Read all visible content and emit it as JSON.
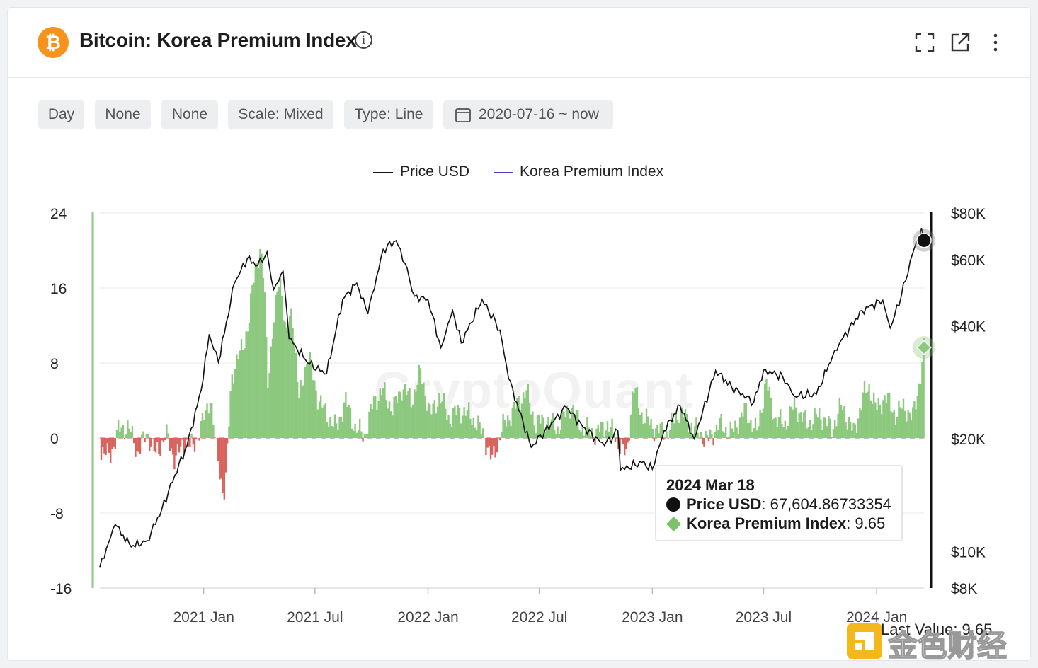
{
  "header": {
    "title": "Bitcoin: Korea Premium Index",
    "logo_glyph": "₿",
    "info_glyph": "i",
    "actions": [
      {
        "name": "fullscreen-icon"
      },
      {
        "name": "external-link-icon"
      },
      {
        "name": "more-vertical-icon"
      }
    ]
  },
  "toolbar": {
    "chips": [
      {
        "label": "Day"
      },
      {
        "label": "None"
      },
      {
        "label": "None"
      },
      {
        "label": "Scale: Mixed"
      },
      {
        "label": "Type: Line"
      }
    ],
    "date_range": "2020-07-16 ~ now"
  },
  "watermark": "CryptoQuant",
  "tooltip": {
    "date": "2024 Mar 18",
    "price_label": "Price USD",
    "price_value": "67,604.86733354",
    "kpi_label": "Korea Premium Index",
    "kpi_value": "9.65"
  },
  "last_value": "Last Value: 9.65",
  "corner_brand": "金色财经",
  "chart_data": {
    "type": "line",
    "title": "Bitcoin: Korea Premium Index",
    "legend": [
      {
        "name": "Price USD",
        "color": "#111111"
      },
      {
        "name": "Korea Premium Index",
        "color": "#4a3ccc"
      }
    ],
    "legend_position": "top-center",
    "x_ticks": [
      "2021 Jan",
      "2021 Jul",
      "2022 Jan",
      "2022 Jul",
      "2023 Jan",
      "2023 Jul",
      "2024 Jan"
    ],
    "x_range": [
      "2020-07-16",
      "2024-03-18"
    ],
    "left_axis": {
      "ticks": [
        "24",
        "16",
        "8",
        "0",
        "-8",
        "-16"
      ],
      "range": [
        -16,
        24
      ]
    },
    "right_axis": {
      "scale": "log",
      "ticks": [
        "$80K",
        "$60K",
        "$40K",
        "$20K",
        "$10K",
        "$8K"
      ],
      "range": [
        8000,
        80000
      ]
    },
    "grid": true,
    "positive_color": "#8cc97e",
    "negative_color": "#d9635c",
    "series": [
      {
        "name": "Price USD",
        "axis": "right",
        "points": [
          [
            "2020-07-16",
            9100
          ],
          [
            "2020-08-10",
            11800
          ],
          [
            "2020-09-05",
            10300
          ],
          [
            "2020-10-01",
            10700
          ],
          [
            "2020-10-25",
            13000
          ],
          [
            "2020-11-15",
            16000
          ],
          [
            "2020-12-05",
            19200
          ],
          [
            "2020-12-28",
            27000
          ],
          [
            "2021-01-10",
            38000
          ],
          [
            "2021-01-25",
            32000
          ],
          [
            "2021-02-20",
            52000
          ],
          [
            "2021-03-13",
            60500
          ],
          [
            "2021-03-30",
            58000
          ],
          [
            "2021-04-14",
            63000
          ],
          [
            "2021-04-25",
            50000
          ],
          [
            "2021-05-10",
            56000
          ],
          [
            "2021-05-20",
            37000
          ],
          [
            "2021-06-22",
            31600
          ],
          [
            "2021-07-20",
            29800
          ],
          [
            "2021-08-15",
            47000
          ],
          [
            "2021-09-07",
            52000
          ],
          [
            "2021-09-25",
            43000
          ],
          [
            "2021-10-20",
            64000
          ],
          [
            "2021-11-10",
            67500
          ],
          [
            "2021-11-28",
            57000
          ],
          [
            "2021-12-10",
            48000
          ],
          [
            "2022-01-01",
            47000
          ],
          [
            "2022-01-22",
            35000
          ],
          [
            "2022-02-10",
            44000
          ],
          [
            "2022-02-24",
            36000
          ],
          [
            "2022-03-30",
            47000
          ],
          [
            "2022-04-28",
            39000
          ],
          [
            "2022-05-12",
            29000
          ],
          [
            "2022-06-18",
            19000
          ],
          [
            "2022-07-10",
            21000
          ],
          [
            "2022-08-14",
            24300
          ],
          [
            "2022-09-10",
            21500
          ],
          [
            "2022-10-15",
            19200
          ],
          [
            "2022-11-06",
            21000
          ],
          [
            "2022-11-10",
            16500
          ],
          [
            "2022-12-15",
            17300
          ],
          [
            "2023-01-01",
            16600
          ],
          [
            "2023-01-20",
            21000
          ],
          [
            "2023-02-15",
            24500
          ],
          [
            "2023-03-10",
            20000
          ],
          [
            "2023-04-14",
            30400
          ],
          [
            "2023-05-10",
            27500
          ],
          [
            "2023-06-15",
            25000
          ],
          [
            "2023-07-01",
            30500
          ],
          [
            "2023-08-01",
            29300
          ],
          [
            "2023-08-20",
            26000
          ],
          [
            "2023-09-25",
            26300
          ],
          [
            "2023-10-25",
            34500
          ],
          [
            "2023-12-08",
            44000
          ],
          [
            "2024-01-11",
            46800
          ],
          [
            "2024-01-23",
            39500
          ],
          [
            "2024-02-10",
            48000
          ],
          [
            "2024-02-28",
            62000
          ],
          [
            "2024-03-14",
            73000
          ],
          [
            "2024-03-18",
            67604.87
          ]
        ]
      },
      {
        "name": "Korea Premium Index",
        "axis": "left",
        "points": [
          [
            "2020-07-16",
            -1.2
          ],
          [
            "2020-08-01",
            -2.0
          ],
          [
            "2020-08-15",
            0.8
          ],
          [
            "2020-09-01",
            1.2
          ],
          [
            "2020-09-15",
            -1.5
          ],
          [
            "2020-10-01",
            0.5
          ],
          [
            "2020-10-15",
            -1.8
          ],
          [
            "2020-11-01",
            0.4
          ],
          [
            "2020-11-15",
            -2.2
          ],
          [
            "2020-12-01",
            -0.5
          ],
          [
            "2020-12-15",
            -1.0
          ],
          [
            "2021-01-01",
            2.0
          ],
          [
            "2021-01-12",
            4.5
          ],
          [
            "2021-01-20",
            -0.5
          ],
          [
            "2021-02-01",
            -5.5
          ],
          [
            "2021-02-05",
            -6.0
          ],
          [
            "2021-02-15",
            6.5
          ],
          [
            "2021-03-01",
            9.0
          ],
          [
            "2021-03-15",
            12.0
          ],
          [
            "2021-03-25",
            18.0
          ],
          [
            "2021-04-03",
            20.0
          ],
          [
            "2021-04-10",
            16.0
          ],
          [
            "2021-04-15",
            6.0
          ],
          [
            "2021-04-25",
            12.0
          ],
          [
            "2021-05-05",
            18.0
          ],
          [
            "2021-05-15",
            10.5
          ],
          [
            "2021-05-25",
            14.0
          ],
          [
            "2021-06-05",
            4.0
          ],
          [
            "2021-06-20",
            9.0
          ],
          [
            "2021-07-05",
            4.5
          ],
          [
            "2021-07-20",
            2.5
          ],
          [
            "2021-08-05",
            1.0
          ],
          [
            "2021-08-20",
            4.0
          ],
          [
            "2021-09-05",
            1.0
          ],
          [
            "2021-09-20",
            0.3
          ],
          [
            "2021-10-05",
            4.0
          ],
          [
            "2021-10-20",
            5.0
          ],
          [
            "2021-11-05",
            3.0
          ],
          [
            "2021-11-20",
            5.5
          ],
          [
            "2021-12-05",
            4.0
          ],
          [
            "2021-12-20",
            7.0
          ],
          [
            "2022-01-05",
            2.5
          ],
          [
            "2022-01-20",
            4.5
          ],
          [
            "2022-02-05",
            2.0
          ],
          [
            "2022-02-20",
            3.0
          ],
          [
            "2022-03-10",
            2.5
          ],
          [
            "2022-04-01",
            0.5
          ],
          [
            "2022-04-15",
            -2.5
          ],
          [
            "2022-05-01",
            1.0
          ],
          [
            "2022-05-20",
            3.0
          ],
          [
            "2022-06-10",
            5.0
          ],
          [
            "2022-06-25",
            1.5
          ],
          [
            "2022-07-10",
            2.0
          ],
          [
            "2022-08-01",
            1.0
          ],
          [
            "2022-08-20",
            3.5
          ],
          [
            "2022-09-10",
            1.0
          ],
          [
            "2022-10-01",
            0.5
          ],
          [
            "2022-10-20",
            1.5
          ],
          [
            "2022-11-10",
            -0.8
          ],
          [
            "2022-11-20",
            -2.0
          ],
          [
            "2022-12-01",
            5.5
          ],
          [
            "2022-12-15",
            2.5
          ],
          [
            "2023-01-05",
            1.0
          ],
          [
            "2023-01-25",
            0.5
          ],
          [
            "2023-02-15",
            3.0
          ],
          [
            "2023-03-10",
            1.0
          ],
          [
            "2023-04-01",
            -0.3
          ],
          [
            "2023-04-20",
            1.5
          ],
          [
            "2023-05-10",
            0.5
          ],
          [
            "2023-06-01",
            3.0
          ],
          [
            "2023-06-20",
            0.5
          ],
          [
            "2023-07-05",
            6.0
          ],
          [
            "2023-07-20",
            2.0
          ],
          [
            "2023-08-05",
            1.5
          ],
          [
            "2023-08-20",
            3.5
          ],
          [
            "2023-09-10",
            1.5
          ],
          [
            "2023-10-01",
            2.5
          ],
          [
            "2023-10-20",
            1.0
          ],
          [
            "2023-11-05",
            3.5
          ],
          [
            "2023-11-25",
            0.5
          ],
          [
            "2023-12-10",
            4.5
          ],
          [
            "2023-12-20",
            5.5
          ],
          [
            "2024-01-01",
            3.0
          ],
          [
            "2024-01-15",
            4.5
          ],
          [
            "2024-02-01",
            2.5
          ],
          [
            "2024-02-15",
            3.5
          ],
          [
            "2024-02-28",
            2.0
          ],
          [
            "2024-03-05",
            4.0
          ],
          [
            "2024-03-12",
            6.5
          ],
          [
            "2024-03-18",
            9.65
          ]
        ]
      }
    ]
  }
}
